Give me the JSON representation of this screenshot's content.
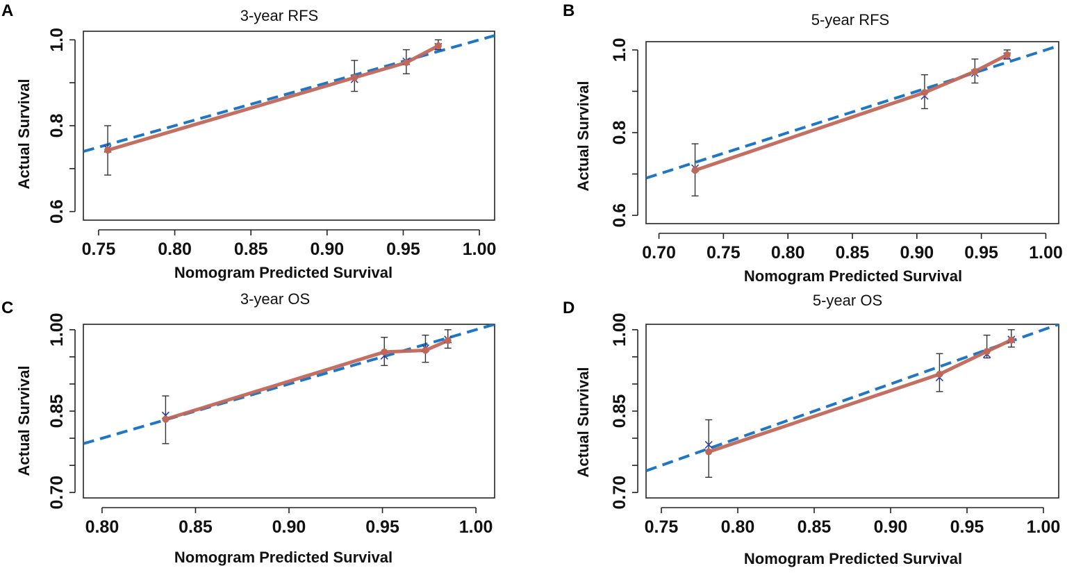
{
  "figure": {
    "colors": {
      "ideal_line": "#1f77c4",
      "calibration_line": "#c0675a",
      "point_fill": "#c0675a",
      "kaplan_meier_marker": "#2a3fb0",
      "error_bar": "#333333",
      "axis": "#222222"
    }
  },
  "chart_data": [
    {
      "panel": "A",
      "type": "line",
      "title": "3-year RFS",
      "xlabel": "Nomogram Predicted Survival",
      "ylabel": "Actual Survival",
      "xlim": [
        0.74,
        1.01
      ],
      "ylim": [
        0.58,
        1.02
      ],
      "xticks": [
        0.75,
        0.8,
        0.85,
        0.9,
        0.95,
        1.0
      ],
      "xtick_labels": [
        "0.75",
        "0.80",
        "0.85",
        "0.90",
        "0.95",
        "1.00"
      ],
      "yticks": [
        0.6,
        0.7,
        0.8,
        0.9,
        1.0
      ],
      "ytick_labels": [
        "0.6",
        "",
        "0.8",
        "",
        "1.0"
      ],
      "ideal_line": {
        "x": [
          0.74,
          1.01
        ],
        "y": [
          0.74,
          1.01
        ]
      },
      "series": [
        {
          "name": "calibration",
          "x": [
            0.756,
            0.918,
            0.952,
            0.973
          ],
          "y": [
            0.743,
            0.912,
            0.947,
            0.986
          ],
          "ci_low": [
            0.685,
            0.88,
            0.921,
            0.977
          ],
          "ci_high": [
            0.8,
            0.952,
            0.977,
            1.0
          ],
          "km_x": [
            0.756,
            0.918,
            0.952,
            0.973
          ],
          "km_y": [
            0.746,
            0.908,
            0.95,
            0.984
          ]
        }
      ]
    },
    {
      "panel": "B",
      "type": "line",
      "title": "5-year RFS",
      "xlabel": "Nomogram Predicted Survival",
      "ylabel": "Actual Survival",
      "xlim": [
        0.69,
        1.01
      ],
      "ylim": [
        0.58,
        1.02
      ],
      "xticks": [
        0.7,
        0.75,
        0.8,
        0.85,
        0.9,
        0.95,
        1.0
      ],
      "xtick_labels": [
        "0.70",
        "0.75",
        "0.80",
        "0.85",
        "0.90",
        "0.95",
        "1.00"
      ],
      "yticks": [
        0.6,
        0.7,
        0.8,
        0.9,
        1.0
      ],
      "ytick_labels": [
        "0.6",
        "",
        "0.8",
        "",
        "1.0"
      ],
      "ideal_line": {
        "x": [
          0.69,
          1.01
        ],
        "y": [
          0.69,
          1.01
        ]
      },
      "series": [
        {
          "name": "calibration",
          "x": [
            0.728,
            0.906,
            0.945,
            0.97
          ],
          "y": [
            0.709,
            0.897,
            0.948,
            0.988
          ],
          "ci_low": [
            0.647,
            0.858,
            0.92,
            0.978
          ],
          "ci_high": [
            0.773,
            0.94,
            0.978,
            1.0
          ],
          "km_x": [
            0.728,
            0.906,
            0.945,
            0.97
          ],
          "km_y": [
            0.714,
            0.889,
            0.944,
            0.985
          ]
        }
      ]
    },
    {
      "panel": "C",
      "type": "line",
      "title": "3-year OS",
      "xlabel": "Nomogram Predicted Survival",
      "ylabel": "Actual Survival",
      "xlim": [
        0.79,
        1.01
      ],
      "ylim": [
        0.69,
        1.01
      ],
      "xticks": [
        0.8,
        0.85,
        0.9,
        0.95,
        1.0
      ],
      "xtick_labels": [
        "0.80",
        "0.85",
        "0.90",
        "0.95",
        "1.00"
      ],
      "yticks": [
        0.7,
        0.75,
        0.8,
        0.85,
        0.9,
        0.95,
        1.0
      ],
      "ytick_labels": [
        "0.70",
        "",
        "",
        "0.85",
        "",
        "",
        "1.00"
      ],
      "ideal_line": {
        "x": [
          0.79,
          1.01
        ],
        "y": [
          0.79,
          1.01
        ]
      },
      "series": [
        {
          "name": "calibration",
          "x": [
            0.834,
            0.951,
            0.973,
            0.985
          ],
          "y": [
            0.835,
            0.959,
            0.962,
            0.98
          ],
          "ci_low": [
            0.79,
            0.934,
            0.94,
            0.966
          ],
          "ci_high": [
            0.878,
            0.986,
            0.99,
            1.0
          ],
          "km_x": [
            0.834,
            0.951,
            0.973,
            0.985
          ],
          "km_y": [
            0.842,
            0.952,
            0.966,
            0.982
          ]
        }
      ]
    },
    {
      "panel": "D",
      "type": "line",
      "title": "5-year OS",
      "xlabel": "Nomogram Predicted Survival",
      "ylabel": "Actual Survival",
      "xlim": [
        0.74,
        1.01
      ],
      "ylim": [
        0.69,
        1.01
      ],
      "xticks": [
        0.75,
        0.8,
        0.85,
        0.9,
        0.95,
        1.0
      ],
      "xtick_labels": [
        "0.75",
        "0.80",
        "0.85",
        "0.90",
        "0.95",
        "1.00"
      ],
      "yticks": [
        0.7,
        0.75,
        0.8,
        0.85,
        0.9,
        0.95,
        1.0
      ],
      "ytick_labels": [
        "0.70",
        "",
        "",
        "0.85",
        "",
        "",
        "1.00"
      ],
      "ideal_line": {
        "x": [
          0.74,
          1.01
        ],
        "y": [
          0.74,
          1.01
        ]
      },
      "series": [
        {
          "name": "calibration",
          "x": [
            0.781,
            0.932,
            0.963,
            0.979
          ],
          "y": [
            0.775,
            0.918,
            0.96,
            0.981
          ],
          "ci_low": [
            0.728,
            0.886,
            0.948,
            0.968
          ],
          "ci_high": [
            0.834,
            0.956,
            0.99,
            1.0
          ],
          "km_x": [
            0.781,
            0.932,
            0.963,
            0.979
          ],
          "km_y": [
            0.788,
            0.912,
            0.955,
            0.982
          ]
        }
      ]
    }
  ]
}
